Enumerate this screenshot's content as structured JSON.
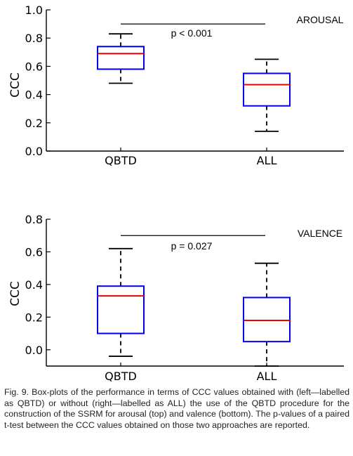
{
  "chart_data": [
    {
      "type": "boxplot",
      "ylabel": "CCC",
      "ylim": [
        0.0,
        1.0
      ],
      "yticks": [
        "0.0",
        "0.2",
        "0.4",
        "0.6",
        "0.8",
        "1.0"
      ],
      "categories": [
        "QBTD",
        "ALL"
      ],
      "boxes": [
        {
          "category": "QBTD",
          "whisker_low": 0.48,
          "q1": 0.58,
          "median": 0.69,
          "q3": 0.74,
          "whisker_high": 0.83
        },
        {
          "category": "ALL",
          "whisker_low": 0.14,
          "q1": 0.32,
          "median": 0.47,
          "q3": 0.55,
          "whisker_high": 0.65
        }
      ],
      "annotation_label": "AROUSAL",
      "bracket": {
        "level": 0.9,
        "text": "p < 0.001"
      },
      "colors": {
        "box": "#0000ee",
        "median": "#ee0000",
        "whisker": "#000000"
      }
    },
    {
      "type": "boxplot",
      "ylabel": "CCC",
      "ylim": [
        -0.1,
        0.8
      ],
      "yticks": [
        "0.0",
        "0.2",
        "0.4",
        "0.6",
        "0.8"
      ],
      "categories": [
        "QBTD",
        "ALL"
      ],
      "boxes": [
        {
          "category": "QBTD",
          "whisker_low": -0.04,
          "q1": 0.1,
          "median": 0.33,
          "q3": 0.39,
          "whisker_high": 0.62
        },
        {
          "category": "ALL",
          "whisker_low": -0.1,
          "q1": 0.05,
          "median": 0.18,
          "q3": 0.32,
          "whisker_high": 0.53
        }
      ],
      "annotation_label": "VALENCE",
      "bracket": {
        "level": 0.7,
        "text": "p = 0.027"
      },
      "colors": {
        "box": "#0000ee",
        "median": "#ee0000",
        "whisker": "#000000"
      }
    }
  ],
  "caption": "Fig. 9. Box-plots of the performance in terms of CCC values obtained with (left—labelled as QBTD) or without (right—labelled as ALL) the use of the QBTD procedure for the construction of the SSRM for arousal (top) and valence (bottom). The p-values of a paired t-test between the CCC values obtained on those two approaches are reported."
}
